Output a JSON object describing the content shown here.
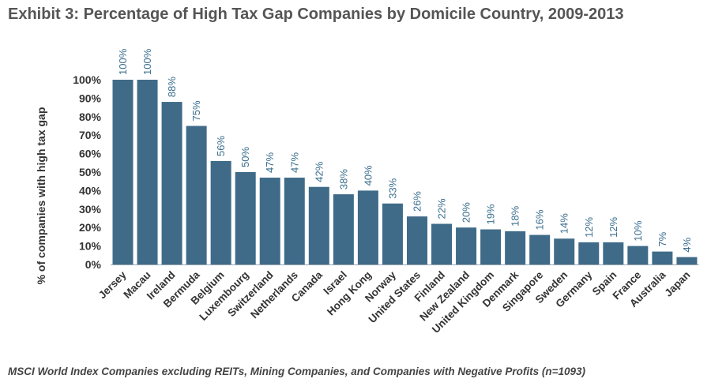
{
  "title": "Exhibit 3: Percentage of High Tax Gap Companies by Domicile Country, 2009-2013",
  "footnote": "MSCI World Index Companies excluding REITs, Mining Companies, and Companies with Negative Profits (n=1093)",
  "chart_data": {
    "type": "bar",
    "ylabel": "% of companies with high tax gap",
    "xlabel": "",
    "ylim": [
      0,
      100
    ],
    "yticks": [
      "0%",
      "10%",
      "20%",
      "30%",
      "40%",
      "50%",
      "60%",
      "70%",
      "80%",
      "90%",
      "100%"
    ],
    "categories": [
      "Jersey",
      "Macau",
      "Ireland",
      "Bermuda",
      "Belgium",
      "Luxembourg",
      "Switzerland",
      "Netherlands",
      "Canada",
      "Israel",
      "Hong Kong",
      "Norway",
      "United States",
      "Finland",
      "New Zealand",
      "United Kingdom",
      "Denmark",
      "Singapore",
      "Sweden",
      "Germany",
      "Spain",
      "France",
      "Australia",
      "Japan"
    ],
    "values": [
      100,
      100,
      88,
      75,
      56,
      50,
      47,
      47,
      42,
      38,
      40,
      33,
      26,
      22,
      20,
      19,
      18,
      16,
      14,
      12,
      12,
      10,
      7,
      4
    ],
    "data_labels": [
      "100%",
      "100%",
      "88%",
      "75%",
      "56%",
      "50%",
      "47%",
      "47%",
      "42%",
      "38%",
      "40%",
      "33%",
      "26%",
      "22%",
      "20%",
      "19%",
      "18%",
      "16%",
      "14%",
      "12%",
      "12%",
      "10%",
      "7%",
      "4%"
    ],
    "grid": false,
    "bar_color": "#3f6b89",
    "label_color": "#3b6f8f"
  }
}
